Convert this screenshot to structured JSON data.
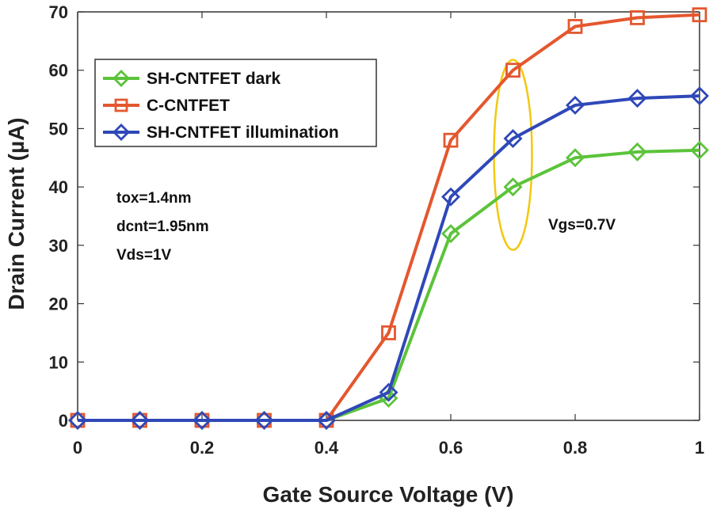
{
  "chart_data": {
    "type": "line",
    "xlabel": "Gate Source Voltage  (V)",
    "ylabel": "Drain Current  (µA)",
    "xlim": [
      0,
      1
    ],
    "ylim": [
      0,
      70
    ],
    "x_ticks": [
      0,
      0.2,
      0.4,
      0.6,
      0.8,
      1
    ],
    "x_tick_labels": [
      "0",
      "0.2",
      "0.4",
      "0.6",
      "0.8",
      "1"
    ],
    "y_ticks": [
      0,
      10,
      20,
      30,
      40,
      50,
      60,
      70
    ],
    "y_tick_labels": [
      "0",
      "10",
      "20",
      "30",
      "40",
      "50",
      "60",
      "70"
    ],
    "x": [
      0,
      0.1,
      0.2,
      0.3,
      0.4,
      0.5,
      0.6,
      0.7,
      0.8,
      0.9,
      1.0
    ],
    "series": [
      {
        "name": "SH-CNTFET dark",
        "color": "#5cc33a",
        "marker": "diamond",
        "values": [
          0,
          0,
          0,
          0,
          0,
          3.8,
          32,
          40,
          45,
          46,
          46.3
        ]
      },
      {
        "name": "C-CNTFET",
        "color": "#e4572e",
        "marker": "square",
        "values": [
          0,
          0,
          0,
          0,
          0,
          15,
          48,
          60,
          67.5,
          69,
          69.5
        ]
      },
      {
        "name": "SH-CNTFET illumination",
        "color": "#2f48b8",
        "marker": "diamond",
        "values": [
          0,
          0,
          0,
          0,
          0,
          4.8,
          38.3,
          48.3,
          54,
          55.2,
          55.6
        ]
      }
    ],
    "legend_position": "top-left",
    "annotations": {
      "params": [
        "tox=1.4nm",
        "dcnt=1.95nm",
        "Vds=1V"
      ],
      "vgs": "Vgs=0.7V",
      "highlight_x": 0.7,
      "highlight_color": "#f2c811"
    },
    "grid": false
  }
}
